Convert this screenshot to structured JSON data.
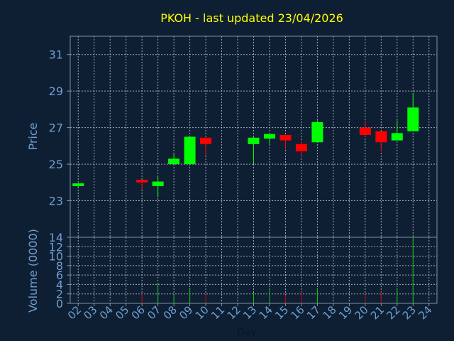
{
  "chart_data": {
    "type": "candlestick",
    "title": "PKOH - last updated 23/04/2026",
    "xlabel": "Day",
    "ylabel_price": "Price",
    "ylabel_volume": "Volume (0000)",
    "x_ticks": [
      "02",
      "03",
      "04",
      "05",
      "06",
      "07",
      "08",
      "09",
      "10",
      "11",
      "12",
      "13",
      "14",
      "15",
      "16",
      "17",
      "18",
      "19",
      "20",
      "21",
      "22",
      "23",
      "24"
    ],
    "price_ticks": [
      23,
      25,
      27,
      29,
      31
    ],
    "price_range": [
      21.0,
      32.0
    ],
    "volume_ticks": [
      0,
      2,
      4,
      6,
      8,
      10,
      12,
      14
    ],
    "volume_range": [
      0,
      14
    ],
    "grid": true,
    "colors": {
      "background": "#0f1f33",
      "axis": "#7f8fa6",
      "grid": "#a0a8b8",
      "title": "#ffff00",
      "label": "#6f9fcf",
      "up": "#00ff00",
      "down": "#ff0000",
      "vol_up": "#00cc00",
      "vol_down": "#cc0000"
    },
    "candles": [
      {
        "day": "02",
        "open": 23.8,
        "high": 23.95,
        "low": 23.7,
        "close": 23.95,
        "volume": 0
      },
      {
        "day": "06",
        "open": 24.15,
        "high": 24.15,
        "low": 23.6,
        "close": 24.0,
        "volume": 2.0
      },
      {
        "day": "07",
        "open": 23.8,
        "high": 24.3,
        "low": 23.2,
        "close": 24.05,
        "volume": 4.2
      },
      {
        "day": "08",
        "open": 25.0,
        "high": 25.6,
        "low": 25.0,
        "close": 25.3,
        "volume": 1.9
      },
      {
        "day": "09",
        "open": 25.0,
        "high": 26.5,
        "low": 25.0,
        "close": 26.5,
        "volume": 3.3
      },
      {
        "day": "10",
        "open": 26.45,
        "high": 26.45,
        "low": 25.5,
        "close": 26.1,
        "volume": 1.9
      },
      {
        "day": "13",
        "open": 26.1,
        "high": 26.5,
        "low": 25.0,
        "close": 26.45,
        "volume": 2.2
      },
      {
        "day": "14",
        "open": 26.4,
        "high": 26.7,
        "low": 26.1,
        "close": 26.65,
        "volume": 2.8
      },
      {
        "day": "15",
        "open": 26.6,
        "high": 26.6,
        "low": 25.8,
        "close": 26.3,
        "volume": 1.8
      },
      {
        "day": "16",
        "open": 26.1,
        "high": 26.3,
        "low": 25.4,
        "close": 25.7,
        "volume": 2.4
      },
      {
        "day": "17",
        "open": 26.2,
        "high": 27.4,
        "low": 26.2,
        "close": 27.3,
        "volume": 3.0
      },
      {
        "day": "20",
        "open": 27.0,
        "high": 27.4,
        "low": 26.5,
        "close": 26.6,
        "volume": 1.9
      },
      {
        "day": "21",
        "open": 26.8,
        "high": 26.8,
        "low": 25.7,
        "close": 26.2,
        "volume": 2.4
      },
      {
        "day": "22",
        "open": 26.3,
        "high": 27.4,
        "low": 26.3,
        "close": 26.7,
        "volume": 3.2
      },
      {
        "day": "23",
        "open": 26.8,
        "high": 28.9,
        "low": 26.8,
        "close": 28.1,
        "volume": 14.0
      }
    ]
  }
}
